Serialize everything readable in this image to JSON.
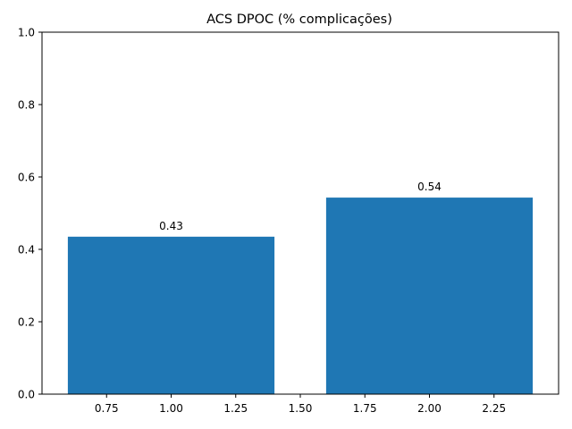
{
  "chart_data": {
    "type": "bar",
    "title": "ACS DPOC (% complicações)",
    "xlabel": "",
    "ylabel": "",
    "x": [
      1.0,
      2.0
    ],
    "bar_width": 0.8,
    "values": [
      0.435,
      0.543
    ],
    "data_labels": [
      "0.43",
      "0.54"
    ],
    "xlim": [
      0.5,
      2.5
    ],
    "ylim": [
      0.0,
      1.0
    ],
    "xticks": [
      0.75,
      1.0,
      1.25,
      1.5,
      1.75,
      2.0,
      2.25
    ],
    "xtick_labels": [
      "0.75",
      "1.00",
      "1.25",
      "1.50",
      "1.75",
      "2.00",
      "2.25"
    ],
    "yticks": [
      0.0,
      0.2,
      0.4,
      0.6,
      0.8,
      1.0
    ],
    "ytick_labels": [
      "0.0",
      "0.2",
      "0.4",
      "0.6",
      "0.8",
      "1.0"
    ],
    "grid": false,
    "legend": "none",
    "bar_color": "#1f77b4"
  }
}
